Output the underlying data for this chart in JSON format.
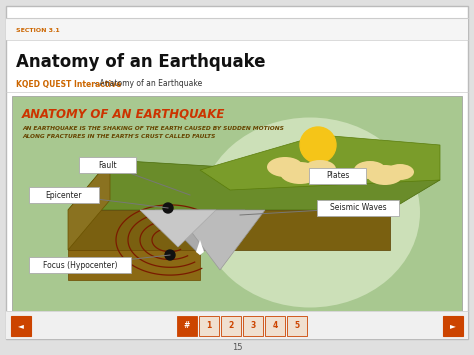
{
  "bg_color": "#e0e0e0",
  "section_label": "SECTION 3.1",
  "section_label_color": "#cc6600",
  "title": "Anatomy of an Earthquake",
  "title_color": "#111111",
  "subtitle_bold": "KQED QUEST Interactive",
  "subtitle_color": "#cc6600",
  "subtitle_normal": " - Anatomy of an Earthquake",
  "subtitle_normal_color": "#333333",
  "interactive_bg": "#a8c890",
  "circle_bg": "#c8ddb8",
  "headline_text": "ANATOMY OF AN EARTHQUAKE",
  "headline_color": "#cc3300",
  "desc_line1": "AN EARTHQUAKE IS THE SHAKING OF THE EARTH CAUSED BY SUDDEN MOTIONS",
  "desc_line2": "ALONG FRACTURES IN THE EARTH'S CRUST CALLED FAULTS",
  "desc_color": "#664400",
  "terrain_top_color": "#6a8c2a",
  "terrain_side_color": "#8a7a20",
  "terrain_front_color": "#7a6010",
  "terrain_under_color": "#8b6914",
  "wave_color": "#7a1a00",
  "sun_color": "#f5c518",
  "cloud_color": "#f0d890",
  "mountain_colors": [
    "#c0c0c0",
    "#b0b0b0",
    "#a0a8a8"
  ],
  "label_box_color": "#ffffff",
  "label_border_color": "#aaaaaa",
  "label_text_color": "#222222",
  "nav_active_color": "#cc4400",
  "nav_inactive_bg": "#f0e0d0",
  "nav_inactive_border": "#cc4400",
  "footer_bg": "#f0f0f0",
  "page_num": "15"
}
